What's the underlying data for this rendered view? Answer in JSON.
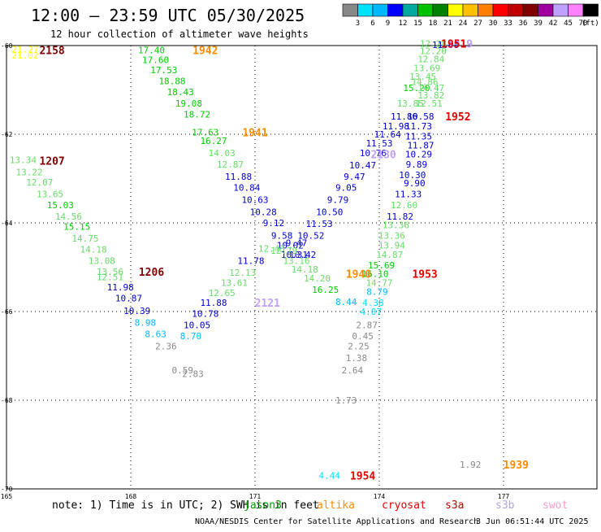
{
  "header": {
    "title": "12:00 – 23:59 UTC 05/30/2025",
    "subtitle": "12 hour collection of altimeter wave heights"
  },
  "colorbar": {
    "unit_label": "(ft)",
    "ticks": [
      "3",
      "6",
      "9",
      "12",
      "15",
      "18",
      "21",
      "24",
      "27",
      "30",
      "33",
      "36",
      "39",
      "42",
      "45",
      "70"
    ],
    "colors": [
      "#888888",
      "#00e0ff",
      "#00b8ff",
      "#0000ff",
      "#00a8a0",
      "#00c000",
      "#008000",
      "#ffff00",
      "#ffc000",
      "#ff8000",
      "#ff0000",
      "#c00000",
      "#800000",
      "#a000a0",
      "#c0a0ff",
      "#ff80ff",
      "#000000"
    ]
  },
  "axes": {
    "lat_labels": [
      "-60",
      "-62",
      "-64",
      "-66",
      "-68",
      "-70"
    ],
    "lon_labels": [
      "165",
      "168",
      "171",
      "174",
      "177"
    ]
  },
  "footer": {
    "note": "note:  1) Time is in UTC; 2) SWH is in feet",
    "legend": [
      {
        "name": "jason3",
        "color": "#00a000"
      },
      {
        "name": "altika",
        "color": "#ff8c00"
      },
      {
        "name": "cryosat",
        "color": "#e00000"
      },
      {
        "name": "s3a",
        "color": "#c00000"
      },
      {
        "name": "s3b",
        "color": "#b8a0e0"
      },
      {
        "name": "swot",
        "color": "#ff99cc"
      }
    ],
    "credit": "NOAA/NESDIS Center for Satellite Applications and Research",
    "timestamp": "3 Jun 06:51:44 UTC 2025"
  },
  "observations": [
    {
      "lon": 165.45,
      "lat": -60.08,
      "v": "21.27",
      "c": "#ffff00"
    },
    {
      "lon": 165.45,
      "lat": -60.22,
      "v": "21.02",
      "c": "#ffff00"
    },
    {
      "lon": 165.4,
      "lat": -62.58,
      "v": "13.34",
      "c": "#66dd66"
    },
    {
      "lon": 165.55,
      "lat": -62.85,
      "v": "13.22",
      "c": "#66dd66"
    },
    {
      "lon": 165.8,
      "lat": -63.08,
      "v": "12.07",
      "c": "#66dd66"
    },
    {
      "lon": 166.05,
      "lat": -63.35,
      "v": "13.65",
      "c": "#66dd66"
    },
    {
      "lon": 166.3,
      "lat": -63.6,
      "v": "15.03",
      "c": "#00cc00"
    },
    {
      "lon": 166.5,
      "lat": -63.85,
      "v": "14.56",
      "c": "#66dd66"
    },
    {
      "lon": 166.7,
      "lat": -64.08,
      "v": "15.15",
      "c": "#00cc00"
    },
    {
      "lon": 166.9,
      "lat": -64.35,
      "v": "14.75",
      "c": "#66dd66"
    },
    {
      "lon": 167.1,
      "lat": -64.6,
      "v": "14.18",
      "c": "#66dd66"
    },
    {
      "lon": 167.3,
      "lat": -64.85,
      "v": "13.08",
      "c": "#66dd66"
    },
    {
      "lon": 167.5,
      "lat": -65.1,
      "v": "13.56",
      "c": "#66dd66"
    },
    {
      "lon": 167.5,
      "lat": -65.22,
      "v": "12.51",
      "c": "#66dd66"
    },
    {
      "lon": 167.75,
      "lat": -65.45,
      "v": "11.98",
      "c": "#0000cc"
    },
    {
      "lon": 167.95,
      "lat": -65.7,
      "v": "10.87",
      "c": "#0000cc"
    },
    {
      "lon": 168.15,
      "lat": -65.98,
      "v": "10.39",
      "c": "#0000cc"
    },
    {
      "lon": 168.35,
      "lat": -66.25,
      "v": "8.98",
      "c": "#00b8ff"
    },
    {
      "lon": 168.6,
      "lat": -66.5,
      "v": "8.63",
      "c": "#00b8ff"
    },
    {
      "lon": 168.85,
      "lat": -66.78,
      "v": "2.36",
      "c": "#888888"
    },
    {
      "lon": 169.25,
      "lat": -67.32,
      "v": "0.59",
      "c": "#888888"
    },
    {
      "lon": 169.5,
      "lat": -67.4,
      "v": "2.83",
      "c": "#888888"
    },
    {
      "lon": 168.5,
      "lat": -60.1,
      "v": "17.40",
      "c": "#00cc00"
    },
    {
      "lon": 168.6,
      "lat": -60.32,
      "v": "17.60",
      "c": "#00cc00"
    },
    {
      "lon": 168.8,
      "lat": -60.55,
      "v": "17.53",
      "c": "#00cc00"
    },
    {
      "lon": 169.0,
      "lat": -60.8,
      "v": "18.88",
      "c": "#00cc00"
    },
    {
      "lon": 169.2,
      "lat": -61.05,
      "v": "18.43",
      "c": "#00cc00"
    },
    {
      "lon": 169.4,
      "lat": -61.3,
      "v": "19.08",
      "c": "#00cc00"
    },
    {
      "lon": 169.6,
      "lat": -61.55,
      "v": "18.72",
      "c": "#00cc00"
    },
    {
      "lon": 169.8,
      "lat": -61.95,
      "v": "17.63",
      "c": "#00cc00"
    },
    {
      "lon": 170.0,
      "lat": -62.15,
      "v": "16.27",
      "c": "#00cc00"
    },
    {
      "lon": 170.2,
      "lat": -62.42,
      "v": "14.03",
      "c": "#66dd66"
    },
    {
      "lon": 170.4,
      "lat": -62.68,
      "v": "12.87",
      "c": "#66dd66"
    },
    {
      "lon": 170.6,
      "lat": -62.95,
      "v": "11.88",
      "c": "#0000cc"
    },
    {
      "lon": 170.8,
      "lat": -63.2,
      "v": "10.84",
      "c": "#0000cc"
    },
    {
      "lon": 171.0,
      "lat": -63.48,
      "v": "10.63",
      "c": "#0000cc"
    },
    {
      "lon": 171.2,
      "lat": -63.75,
      "v": "10.28",
      "c": "#0000cc"
    },
    {
      "lon": 171.45,
      "lat": -64.0,
      "v": "9.12",
      "c": "#0000cc"
    },
    {
      "lon": 171.65,
      "lat": -64.28,
      "v": "9.58",
      "c": "#0000cc"
    },
    {
      "lon": 171.85,
      "lat": -64.5,
      "v": "10.02",
      "c": "#0000cc"
    },
    {
      "lon": 172.0,
      "lat": -64.45,
      "v": "9.47",
      "c": "#0000cc"
    },
    {
      "lon": 171.95,
      "lat": -64.72,
      "v": "10.31",
      "c": "#0000cc"
    },
    {
      "lon": 172.15,
      "lat": -64.72,
      "v": "10.42",
      "c": "#0000cc"
    },
    {
      "lon": 172.35,
      "lat": -64.28,
      "v": "10.52",
      "c": "#0000cc"
    },
    {
      "lon": 172.55,
      "lat": -64.02,
      "v": "11.53",
      "c": "#0000cc"
    },
    {
      "lon": 172.8,
      "lat": -63.75,
      "v": "10.50",
      "c": "#0000cc"
    },
    {
      "lon": 173.0,
      "lat": -63.48,
      "v": "9.79",
      "c": "#0000cc"
    },
    {
      "lon": 173.2,
      "lat": -63.2,
      "v": "9.05",
      "c": "#0000cc"
    },
    {
      "lon": 173.4,
      "lat": -62.95,
      "v": "9.47",
      "c": "#0000cc"
    },
    {
      "lon": 173.6,
      "lat": -62.7,
      "v": "10.47",
      "c": "#0000cc"
    },
    {
      "lon": 173.85,
      "lat": -62.42,
      "v": "10.76",
      "c": "#0000cc"
    },
    {
      "lon": 174.0,
      "lat": -62.2,
      "v": "11.53",
      "c": "#0000cc"
    },
    {
      "lon": 174.2,
      "lat": -62.0,
      "v": "11.64",
      "c": "#0000cc"
    },
    {
      "lon": 174.4,
      "lat": -61.82,
      "v": "11.98",
      "c": "#0000cc"
    },
    {
      "lon": 174.6,
      "lat": -61.6,
      "v": "11.86",
      "c": "#0000cc"
    },
    {
      "lon": 174.75,
      "lat": -61.3,
      "v": "13.85",
      "c": "#66dd66"
    },
    {
      "lon": 174.9,
      "lat": -60.95,
      "v": "15.20",
      "c": "#00cc00"
    },
    {
      "lon": 175.05,
      "lat": -60.7,
      "v": "13.45",
      "c": "#66dd66"
    },
    {
      "lon": 175.15,
      "lat": -60.5,
      "v": "13.69",
      "c": "#66dd66"
    },
    {
      "lon": 175.25,
      "lat": -60.3,
      "v": "12.84",
      "c": "#66dd66"
    },
    {
      "lon": 175.3,
      "lat": -60.12,
      "v": "12.20",
      "c": "#66dd66"
    },
    {
      "lon": 175.3,
      "lat": -59.95,
      "v": "12.28",
      "c": "#66dd66"
    },
    {
      "lon": 175.6,
      "lat": -59.98,
      "v": "11.68",
      "c": "#0000cc"
    },
    {
      "lon": 175.1,
      "lat": -60.82,
      "v": "14.86",
      "c": "#66dd66"
    },
    {
      "lon": 175.25,
      "lat": -60.95,
      "v": "14.47",
      "c": "#66dd66"
    },
    {
      "lon": 175.25,
      "lat": -61.12,
      "v": "13.82",
      "c": "#66dd66"
    },
    {
      "lon": 175.2,
      "lat": -61.3,
      "v": "12.51",
      "c": "#66dd66"
    },
    {
      "lon": 175.0,
      "lat": -61.6,
      "v": "10.58",
      "c": "#0000cc"
    },
    {
      "lon": 174.95,
      "lat": -61.82,
      "v": "11.73",
      "c": "#0000cc"
    },
    {
      "lon": 174.95,
      "lat": -62.05,
      "v": "11.35",
      "c": "#0000cc"
    },
    {
      "lon": 175.0,
      "lat": -62.25,
      "v": "11.87",
      "c": "#0000cc"
    },
    {
      "lon": 174.95,
      "lat": -62.45,
      "v": "10.29",
      "c": "#0000cc"
    },
    {
      "lon": 174.9,
      "lat": -62.68,
      "v": "9.89",
      "c": "#0000cc"
    },
    {
      "lon": 174.8,
      "lat": -62.92,
      "v": "10.30",
      "c": "#0000cc"
    },
    {
      "lon": 174.85,
      "lat": -63.1,
      "v": "9.90",
      "c": "#0000cc"
    },
    {
      "lon": 174.7,
      "lat": -63.35,
      "v": "11.33",
      "c": "#0000cc"
    },
    {
      "lon": 174.6,
      "lat": -63.6,
      "v": "12.60",
      "c": "#66dd66"
    },
    {
      "lon": 174.5,
      "lat": -63.85,
      "v": "11.82",
      "c": "#0000cc"
    },
    {
      "lon": 174.4,
      "lat": -64.05,
      "v": "13.36",
      "c": "#66dd66"
    },
    {
      "lon": 174.3,
      "lat": -64.28,
      "v": "13.36",
      "c": "#66dd66"
    },
    {
      "lon": 174.3,
      "lat": -64.5,
      "v": "13.94",
      "c": "#66dd66"
    },
    {
      "lon": 174.25,
      "lat": -64.72,
      "v": "14.87",
      "c": "#66dd66"
    },
    {
      "lon": 174.05,
      "lat": -64.95,
      "v": "15.69",
      "c": "#00cc00"
    },
    {
      "lon": 173.9,
      "lat": -65.15,
      "v": "16.10",
      "c": "#00cc00"
    },
    {
      "lon": 174.0,
      "lat": -65.35,
      "v": "14.77",
      "c": "#66dd66"
    },
    {
      "lon": 173.95,
      "lat": -65.55,
      "v": "8.79",
      "c": "#00b8ff"
    },
    {
      "lon": 173.85,
      "lat": -65.8,
      "v": "4.38",
      "c": "#00e0ff"
    },
    {
      "lon": 173.8,
      "lat": -66.0,
      "v": "4.07",
      "c": "#00e0ff"
    },
    {
      "lon": 173.7,
      "lat": -66.3,
      "v": "2.87",
      "c": "#888888"
    },
    {
      "lon": 173.6,
      "lat": -66.55,
      "v": "0.45",
      "c": "#888888"
    },
    {
      "lon": 173.5,
      "lat": -66.78,
      "v": "2.25",
      "c": "#888888"
    },
    {
      "lon": 173.45,
      "lat": -67.05,
      "v": "1.38",
      "c": "#888888"
    },
    {
      "lon": 173.35,
      "lat": -67.32,
      "v": "2.64",
      "c": "#888888"
    },
    {
      "lon": 173.2,
      "lat": -68.0,
      "v": "1.73",
      "c": "#888888"
    },
    {
      "lon": 173.2,
      "lat": -65.78,
      "v": "8.44",
      "c": "#00b8ff"
    },
    {
      "lon": 172.7,
      "lat": -65.5,
      "v": "16.25",
      "c": "#00cc00"
    },
    {
      "lon": 172.5,
      "lat": -65.25,
      "v": "14.20",
      "c": "#66dd66"
    },
    {
      "lon": 172.2,
      "lat": -65.05,
      "v": "14.18",
      "c": "#66dd66"
    },
    {
      "lon": 172.0,
      "lat": -64.85,
      "v": "13.16",
      "c": "#66dd66"
    },
    {
      "lon": 171.7,
      "lat": -64.62,
      "v": "12.79",
      "c": "#66dd66"
    },
    {
      "lon": 171.4,
      "lat": -64.58,
      "v": "12.43",
      "c": "#66dd66"
    },
    {
      "lon": 170.9,
      "lat": -64.85,
      "v": "11.78",
      "c": "#0000cc"
    },
    {
      "lon": 170.7,
      "lat": -65.12,
      "v": "12.13",
      "c": "#66dd66"
    },
    {
      "lon": 170.5,
      "lat": -65.35,
      "v": "13.61",
      "c": "#66dd66"
    },
    {
      "lon": 170.2,
      "lat": -65.58,
      "v": "12.65",
      "c": "#66dd66"
    },
    {
      "lon": 170.0,
      "lat": -65.8,
      "v": "11.88",
      "c": "#0000cc"
    },
    {
      "lon": 169.8,
      "lat": -66.05,
      "v": "10.78",
      "c": "#0000cc"
    },
    {
      "lon": 169.6,
      "lat": -66.3,
      "v": "10.05",
      "c": "#0000cc"
    },
    {
      "lon": 169.45,
      "lat": -66.55,
      "v": "8.70",
      "c": "#00b8ff"
    },
    {
      "lon": 172.8,
      "lat": -69.7,
      "v": "4.44",
      "c": "#00e0ff"
    },
    {
      "lon": 176.2,
      "lat": -69.45,
      "v": "1.92",
      "c": "#888888"
    }
  ],
  "pass_labels": [
    {
      "lon": 166.1,
      "lat": -60.1,
      "t": "2158",
      "c": "#800000"
    },
    {
      "lon": 166.1,
      "lat": -62.6,
      "t": "1207",
      "c": "#800000"
    },
    {
      "lon": 168.5,
      "lat": -65.1,
      "t": "1206",
      "c": "#800000"
    },
    {
      "lon": 169.8,
      "lat": -60.1,
      "t": "1942",
      "c": "#ff8c00"
    },
    {
      "lon": 171.0,
      "lat": -61.95,
      "t": "1941",
      "c": "#ff8c00"
    },
    {
      "lon": 171.3,
      "lat": -65.8,
      "t": "2121",
      "c": "#c0a0ff"
    },
    {
      "lon": 173.5,
      "lat": -65.15,
      "t": "1940",
      "c": "#ff8c00"
    },
    {
      "lon": 174.1,
      "lat": -62.45,
      "t": "2130",
      "c": "#c0a0ff"
    },
    {
      "lon": 175.9,
      "lat": -61.6,
      "t": "1952",
      "c": "#e00000"
    },
    {
      "lon": 175.95,
      "lat": -59.95,
      "t": "1919",
      "c": "#c0a0ff"
    },
    {
      "lon": 175.8,
      "lat": -59.95,
      "t": "1951",
      "c": "#e00000"
    },
    {
      "lon": 175.1,
      "lat": -65.15,
      "t": "1953",
      "c": "#e00000"
    },
    {
      "lon": 173.6,
      "lat": -69.7,
      "t": "1954",
      "c": "#e00000"
    },
    {
      "lon": 177.3,
      "lat": -69.45,
      "t": "1939",
      "c": "#ff8c00"
    }
  ]
}
